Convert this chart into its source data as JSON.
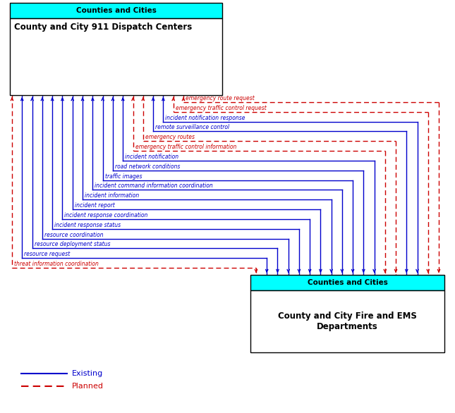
{
  "box1_header": "Counties and Cities",
  "box1_label": "County and City 911 Dispatch Centers",
  "box2_header": "Counties and Cities",
  "box2_label": "County and City Fire and EMS\nDepartments",
  "cyan_color": "#00FFFF",
  "box_edge_color": "#000000",
  "existing_color": "#0000CC",
  "planned_color": "#CC0000",
  "bg_color": "#FFFFFF",
  "flows": [
    {
      "label": "emergency route request",
      "color": "red",
      "style": "dashed"
    },
    {
      "label": "emergency traffic control request",
      "color": "red",
      "style": "dashed"
    },
    {
      "label": "incident notification response",
      "color": "blue",
      "style": "solid"
    },
    {
      "label": "remote surveillance control",
      "color": "blue",
      "style": "solid"
    },
    {
      "label": "emergency routes",
      "color": "red",
      "style": "dashed"
    },
    {
      "label": "emergency traffic control information",
      "color": "red",
      "style": "dashed"
    },
    {
      "label": "incident notification",
      "color": "blue",
      "style": "solid"
    },
    {
      "label": "road network conditions",
      "color": "blue",
      "style": "solid"
    },
    {
      "label": "traffic images",
      "color": "blue",
      "style": "solid"
    },
    {
      "label": "incident command information coordination",
      "color": "blue",
      "style": "solid"
    },
    {
      "label": "incident information",
      "color": "blue",
      "style": "solid"
    },
    {
      "label": "incident report",
      "color": "blue",
      "style": "solid"
    },
    {
      "label": "incident response coordination",
      "color": "blue",
      "style": "solid"
    },
    {
      "label": "incident response status",
      "color": "blue",
      "style": "solid"
    },
    {
      "label": "resource coordination",
      "color": "blue",
      "style": "solid"
    },
    {
      "label": "resource deployment status",
      "color": "blue",
      "style": "solid"
    },
    {
      "label": "resource request",
      "color": "blue",
      "style": "solid"
    },
    {
      "label": "threat information coordination",
      "color": "red",
      "style": "dashed"
    }
  ]
}
